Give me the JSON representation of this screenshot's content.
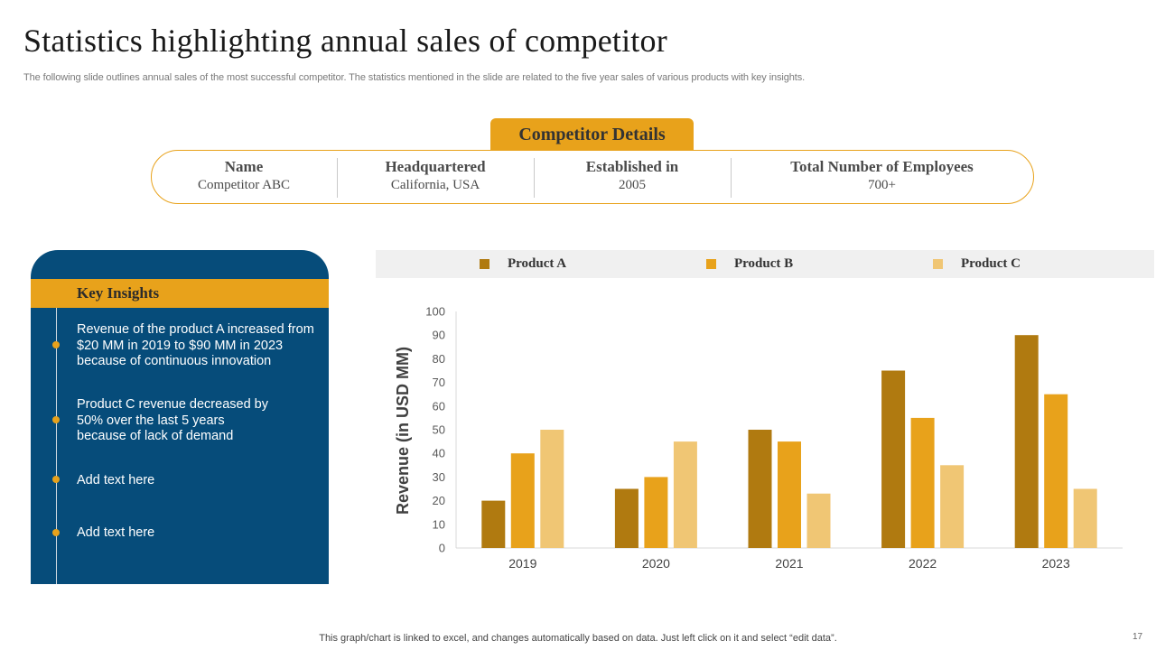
{
  "title": "Statistics highlighting annual sales of competitor",
  "subtitle": "The following slide outlines annual sales of the most successful competitor. The statistics mentioned in the slide are related to the five year sales of various products with key insights.",
  "competitor": {
    "tab_label": "Competitor  Details",
    "columns": [
      {
        "header": "Name",
        "value": "Competitor  ABC"
      },
      {
        "header": "Headquartered",
        "value": "California,  USA"
      },
      {
        "header": "Established in",
        "value": "2005"
      },
      {
        "header": "Total Number of Employees",
        "value": "700+"
      }
    ]
  },
  "insights": {
    "title": "Key Insights",
    "items": [
      "Revenue of the product A increased from $20 MM  in 2019 to $90 MM  in 2023 because of continuous innovation",
      "Product C revenue decreased by 50% over the last 5 years because of lack of demand",
      "Add text here",
      "Add text here"
    ]
  },
  "colors": {
    "accent": "#E8A21B",
    "panel": "#064C7A",
    "product_a": "#B07A10",
    "product_b": "#E8A21B",
    "product_c": "#F0C674"
  },
  "chart_data": {
    "type": "bar",
    "categories": [
      "2019",
      "2020",
      "2021",
      "2022",
      "2023"
    ],
    "series": [
      {
        "name": "Product  A",
        "values": [
          20,
          25,
          50,
          75,
          90
        ]
      },
      {
        "name": "Product  B",
        "values": [
          40,
          30,
          45,
          55,
          65
        ]
      },
      {
        "name": "Product  C",
        "values": [
          50,
          45,
          23,
          35,
          25
        ]
      }
    ],
    "ylabel": "Revenue (in USD MM)",
    "xlabel": "",
    "ylim": [
      0,
      100
    ],
    "yticks": [
      0,
      10,
      20,
      30,
      40,
      50,
      60,
      70,
      80,
      90,
      100
    ],
    "grid": false,
    "legend": "top"
  },
  "footer": "This graph/chart is linked to excel,  and changes automatically based on data. Just left click on it and select “edit data”.",
  "page_number": "17"
}
